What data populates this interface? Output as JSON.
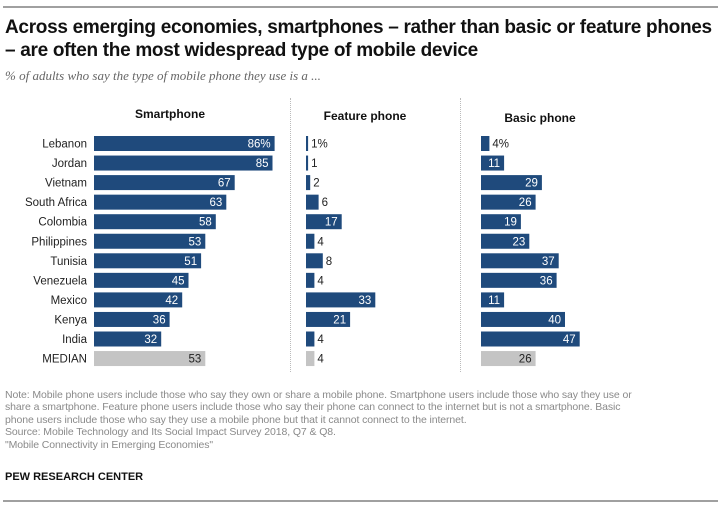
{
  "header": {
    "title": "Across emerging economies, smartphones – rather than basic or feature phones – are often the most widespread type of mobile device",
    "subtitle": "% of adults who say the type of mobile phone they use is a ..."
  },
  "colors": {
    "bar": "#1f4a7c",
    "median_bar": "#c4c4c4",
    "label_inside": "#ffffff",
    "label_outside": "#222222"
  },
  "chart_data": {
    "type": "bar",
    "orientation": "horizontal",
    "title": "Across emerging economies, smartphones – rather than basic or feature phones – are often the most widespread type of mobile device",
    "subtitle": "% of adults who say the type of mobile phone they use is a ...",
    "unit": "%",
    "categories": [
      "Lebanon",
      "Jordan",
      "Vietnam",
      "South Africa",
      "Colombia",
      "Philippines",
      "Tunisia",
      "Venezuela",
      "Mexico",
      "Kenya",
      "India",
      "MEDIAN"
    ],
    "series": [
      {
        "name": "Smartphone",
        "values": [
          86,
          85,
          67,
          63,
          58,
          53,
          51,
          45,
          42,
          36,
          32,
          53
        ]
      },
      {
        "name": "Feature phone",
        "values": [
          1,
          1,
          2,
          6,
          17,
          4,
          8,
          4,
          33,
          21,
          4,
          4
        ]
      },
      {
        "name": "Basic phone",
        "values": [
          4,
          11,
          29,
          26,
          19,
          23,
          37,
          36,
          11,
          40,
          47,
          26
        ]
      }
    ],
    "median_category": "MEDIAN",
    "first_row_percent_suffix": true,
    "xlim": [
      0,
      100
    ],
    "grid": false,
    "legend": "none (panel titles)"
  },
  "footer": {
    "note_lines": [
      "Note: Mobile phone users include those who say they own or share a mobile phone. Smartphone users include those who say they use or",
      "share a smartphone. Feature phone users include those who say their phone can connect to the internet but is not a smartphone. Basic",
      "phone users include those who say they use a mobile phone but that it cannot connect to the internet."
    ],
    "source": "Source: Mobile Technology and Its Social Impact Survey 2018, Q7 & Q8.",
    "report": "\"Mobile Connectivity in Emerging Economies\"",
    "brand": "PEW RESEARCH CENTER"
  }
}
